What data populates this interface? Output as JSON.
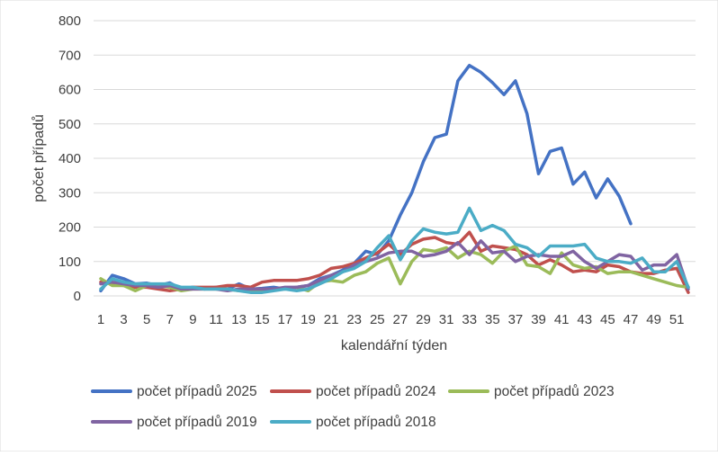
{
  "chart_data": {
    "type": "line",
    "title": "",
    "xlabel": "kalendářní týden",
    "ylabel": "počet případů",
    "ylim": [
      0,
      800
    ],
    "yticks": [
      0,
      100,
      200,
      300,
      400,
      500,
      600,
      700,
      800
    ],
    "xlim": [
      1,
      52
    ],
    "xtick_labels": [
      "1",
      "3",
      "5",
      "7",
      "9",
      "11",
      "13",
      "15",
      "17",
      "19",
      "21",
      "23",
      "25",
      "27",
      "29",
      "31",
      "33",
      "35",
      "37",
      "39",
      "41",
      "43",
      "45",
      "47",
      "49",
      "51"
    ],
    "grid": "horizontal",
    "legend_position": "bottom",
    "series": [
      {
        "name": "počet případů 2025",
        "color": "#4472C4",
        "x": [
          1,
          2,
          3,
          4,
          5,
          6,
          7,
          8,
          9,
          10,
          11,
          12,
          13,
          14,
          15,
          16,
          17,
          18,
          19,
          20,
          21,
          22,
          23,
          24,
          25,
          26,
          27,
          28,
          29,
          30,
          31,
          32,
          33,
          34,
          35,
          36,
          37,
          38,
          39,
          40,
          41,
          42,
          43,
          44,
          45,
          46,
          47
        ],
        "values": [
          15,
          60,
          50,
          35,
          37,
          30,
          38,
          20,
          25,
          20,
          25,
          20,
          35,
          20,
          22,
          25,
          20,
          25,
          30,
          50,
          60,
          75,
          95,
          130,
          120,
          160,
          235,
          300,
          390,
          460,
          470,
          625,
          670,
          650,
          620,
          585,
          625,
          530,
          355,
          420,
          430,
          325,
          360,
          285,
          340,
          290,
          210
        ]
      },
      {
        "name": "počet případů 2024",
        "color": "#C0504D",
        "x": [
          1,
          2,
          3,
          4,
          5,
          6,
          7,
          8,
          9,
          10,
          11,
          12,
          13,
          14,
          15,
          16,
          17,
          18,
          19,
          20,
          21,
          22,
          23,
          24,
          25,
          26,
          27,
          28,
          29,
          30,
          31,
          32,
          33,
          34,
          35,
          36,
          37,
          38,
          39,
          40,
          41,
          42,
          43,
          44,
          45,
          46,
          47,
          48,
          49,
          50,
          51,
          52
        ],
        "values": [
          40,
          35,
          30,
          25,
          25,
          20,
          15,
          20,
          25,
          25,
          25,
          30,
          30,
          25,
          40,
          45,
          45,
          45,
          50,
          60,
          80,
          85,
          95,
          110,
          125,
          150,
          120,
          150,
          165,
          170,
          155,
          150,
          185,
          130,
          145,
          140,
          135,
          120,
          90,
          105,
          90,
          70,
          75,
          70,
          90,
          85,
          70,
          65,
          65,
          75,
          80,
          10
        ]
      },
      {
        "name": "počet případů 2023",
        "color": "#9BBB59",
        "x": [
          1,
          2,
          3,
          4,
          5,
          6,
          7,
          8,
          9,
          10,
          11,
          12,
          13,
          14,
          15,
          16,
          17,
          18,
          19,
          20,
          21,
          22,
          23,
          24,
          25,
          26,
          27,
          28,
          29,
          30,
          31,
          32,
          33,
          34,
          35,
          36,
          37,
          38,
          39,
          40,
          41,
          42,
          43,
          44,
          45,
          46,
          47,
          48,
          49,
          50,
          51,
          52
        ],
        "values": [
          50,
          30,
          30,
          15,
          30,
          30,
          25,
          15,
          20,
          20,
          20,
          20,
          15,
          15,
          15,
          20,
          20,
          25,
          15,
          40,
          45,
          40,
          60,
          70,
          95,
          110,
          35,
          100,
          135,
          130,
          140,
          110,
          130,
          120,
          95,
          130,
          145,
          90,
          85,
          65,
          125,
          90,
          80,
          85,
          65,
          70,
          70,
          60,
          50,
          40,
          30,
          25
        ]
      },
      {
        "name": "počet případů 2019",
        "color": "#8064A2",
        "x": [
          1,
          2,
          3,
          4,
          5,
          6,
          7,
          8,
          9,
          10,
          11,
          12,
          13,
          14,
          15,
          16,
          17,
          18,
          19,
          20,
          21,
          22,
          23,
          24,
          25,
          26,
          27,
          28,
          29,
          30,
          31,
          32,
          33,
          34,
          35,
          36,
          37,
          38,
          39,
          40,
          41,
          42,
          43,
          44,
          45,
          46,
          47,
          48,
          49,
          50,
          51,
          52
        ],
        "values": [
          35,
          40,
          35,
          30,
          30,
          25,
          30,
          20,
          20,
          20,
          20,
          15,
          20,
          20,
          20,
          20,
          25,
          25,
          30,
          45,
          60,
          70,
          90,
          100,
          110,
          125,
          130,
          130,
          115,
          120,
          130,
          155,
          120,
          160,
          125,
          130,
          100,
          115,
          120,
          115,
          115,
          130,
          100,
          80,
          100,
          120,
          115,
          75,
          90,
          90,
          120,
          20
        ]
      },
      {
        "name": "počet případů 2018",
        "color": "#4BACC6",
        "x": [
          1,
          2,
          3,
          4,
          5,
          6,
          7,
          8,
          9,
          10,
          11,
          12,
          13,
          14,
          15,
          16,
          17,
          18,
          19,
          20,
          21,
          22,
          23,
          24,
          25,
          26,
          27,
          28,
          29,
          30,
          31,
          32,
          33,
          34,
          35,
          36,
          37,
          38,
          39,
          40,
          41,
          42,
          43,
          44,
          45,
          46,
          47,
          48,
          49,
          50,
          51,
          52
        ],
        "values": [
          20,
          50,
          40,
          35,
          35,
          35,
          35,
          25,
          25,
          20,
          20,
          20,
          15,
          10,
          10,
          15,
          20,
          15,
          20,
          35,
          50,
          70,
          80,
          100,
          140,
          175,
          105,
          160,
          195,
          185,
          180,
          185,
          255,
          190,
          205,
          190,
          150,
          140,
          115,
          145,
          145,
          145,
          150,
          110,
          100,
          100,
          95,
          110,
          70,
          70,
          100,
          25
        ]
      }
    ]
  }
}
